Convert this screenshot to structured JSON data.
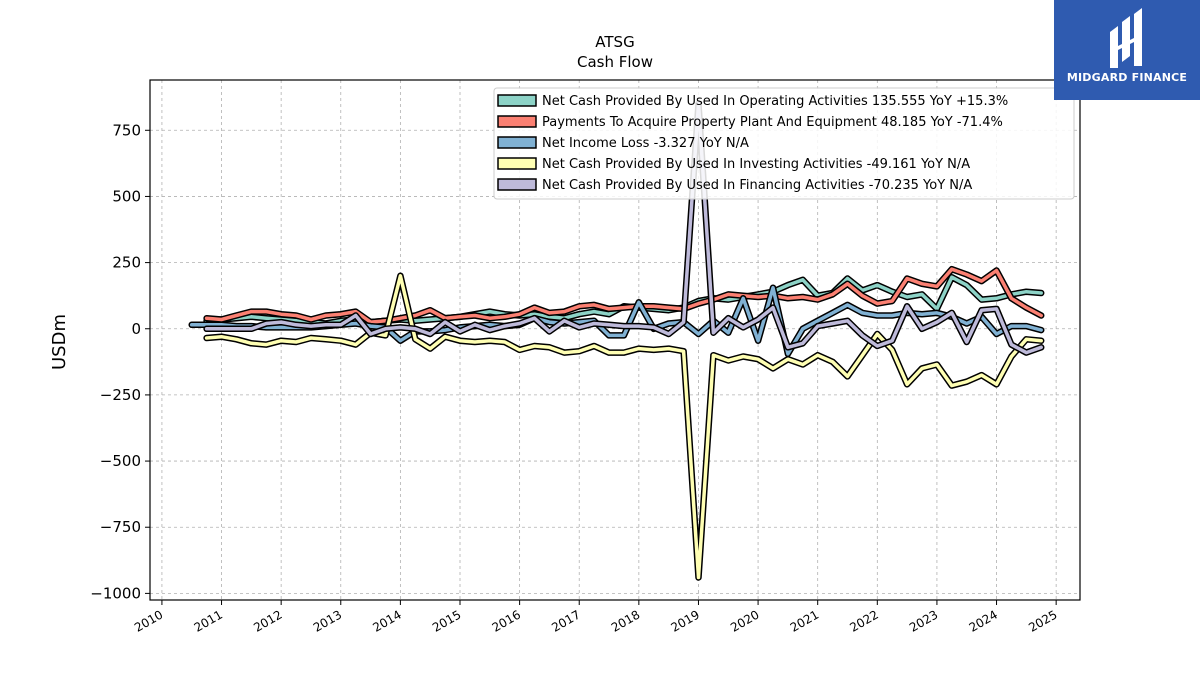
{
  "title_line1": "ATSG",
  "title_line2": "Cash Flow",
  "brand": "MIDGARD FINANCE",
  "chart_data": {
    "type": "line",
    "ylabel": "USDm",
    "ylim": [
      -1025,
      940
    ],
    "xlim": [
      2009.8,
      2025.4
    ],
    "yticks": [
      -1000,
      -750,
      -500,
      -250,
      0,
      250,
      500,
      750
    ],
    "ytick_labels": [
      "−1000",
      "−750",
      "−500",
      "−250",
      "0",
      "250",
      "500",
      "750"
    ],
    "xticks": [
      "2010",
      "2011",
      "2012",
      "2013",
      "2014",
      "2015",
      "2016",
      "2017",
      "2018",
      "2019",
      "2020",
      "2021",
      "2022",
      "2023",
      "2024",
      "2025"
    ],
    "grid": true,
    "legend_placement": "upper-right",
    "series": [
      {
        "name": "Net Cash Provided By Used In Operating Activities  135.555 YoY +15.3%",
        "color": "#8dd3c7",
        "x": [
          2010.75,
          2011.0,
          2011.25,
          2011.5,
          2011.75,
          2012.0,
          2012.25,
          2012.5,
          2012.75,
          2013.0,
          2013.25,
          2013.5,
          2013.75,
          2014.0,
          2014.25,
          2014.5,
          2014.75,
          2015.0,
          2015.25,
          2015.5,
          2015.75,
          2016.0,
          2016.25,
          2016.5,
          2016.75,
          2017.0,
          2017.25,
          2017.5,
          2017.75,
          2018.0,
          2018.25,
          2018.5,
          2018.75,
          2019.0,
          2019.25,
          2019.5,
          2019.75,
          2020.0,
          2020.25,
          2020.5,
          2020.75,
          2021.0,
          2021.25,
          2021.5,
          2021.75,
          2022.0,
          2022.25,
          2022.5,
          2022.75,
          2023.0,
          2023.25,
          2023.5,
          2023.75,
          2024.0,
          2024.25,
          2024.5,
          2024.75
        ],
        "values": [
          30,
          35,
          40,
          45,
          40,
          35,
          30,
          25,
          20,
          30,
          35,
          25,
          30,
          35,
          30,
          35,
          40,
          45,
          55,
          65,
          55,
          50,
          55,
          45,
          40,
          55,
          65,
          55,
          85,
          80,
          75,
          70,
          80,
          105,
          115,
          110,
          120,
          130,
          140,
          165,
          185,
          125,
          135,
          190,
          145,
          165,
          140,
          120,
          130,
          75,
          195,
          165,
          110,
          115,
          130,
          140,
          135
        ]
      },
      {
        "name": "Payments To Acquire Property Plant And Equipment  48.185 YoY -71.4%",
        "color": "#fb8072",
        "x": [
          2010.75,
          2011.0,
          2011.25,
          2011.5,
          2011.75,
          2012.0,
          2012.25,
          2012.5,
          2012.75,
          2013.0,
          2013.25,
          2013.5,
          2013.75,
          2014.0,
          2014.25,
          2014.5,
          2014.75,
          2015.0,
          2015.25,
          2015.5,
          2015.75,
          2016.0,
          2016.25,
          2016.5,
          2016.75,
          2017.0,
          2017.25,
          2017.5,
          2017.75,
          2018.0,
          2018.25,
          2018.5,
          2018.75,
          2019.0,
          2019.25,
          2019.5,
          2019.75,
          2020.0,
          2020.25,
          2020.5,
          2020.75,
          2021.0,
          2021.25,
          2021.5,
          2021.75,
          2022.0,
          2022.25,
          2022.5,
          2022.75,
          2023.0,
          2023.25,
          2023.5,
          2023.75,
          2024.0,
          2024.25,
          2024.5,
          2024.75
        ],
        "values": [
          40,
          35,
          50,
          65,
          65,
          55,
          50,
          35,
          50,
          55,
          65,
          25,
          30,
          40,
          50,
          70,
          40,
          45,
          50,
          40,
          45,
          55,
          80,
          60,
          65,
          85,
          90,
          75,
          80,
          85,
          85,
          80,
          75,
          95,
          110,
          130,
          125,
          120,
          125,
          115,
          120,
          110,
          130,
          170,
          125,
          95,
          105,
          190,
          170,
          160,
          225,
          205,
          180,
          220,
          115,
          80,
          50
        ]
      },
      {
        "name": "Net Income Loss  -3.327 YoY N/A",
        "color": "#80b1d3",
        "x": [
          2010.5,
          2010.75,
          2011.0,
          2011.25,
          2011.5,
          2011.75,
          2012.0,
          2012.25,
          2012.5,
          2012.75,
          2013.0,
          2013.25,
          2013.5,
          2013.75,
          2014.0,
          2014.25,
          2014.5,
          2014.75,
          2015.0,
          2015.25,
          2015.5,
          2015.75,
          2016.0,
          2016.25,
          2016.5,
          2016.75,
          2017.0,
          2017.25,
          2017.5,
          2017.75,
          2018.0,
          2018.25,
          2018.5,
          2018.75,
          2019.0,
          2019.25,
          2019.5,
          2019.75,
          2020.0,
          2020.25,
          2020.5,
          2020.75,
          2021.0,
          2021.25,
          2021.5,
          2021.75,
          2022.0,
          2022.25,
          2022.5,
          2022.75,
          2023.0,
          2023.25,
          2023.5,
          2023.75,
          2024.0,
          2024.25,
          2024.5,
          2024.75
        ],
        "values": [
          15,
          15,
          15,
          10,
          10,
          5,
          5,
          5,
          5,
          10,
          15,
          20,
          10,
          5,
          -45,
          -10,
          -10,
          -5,
          5,
          10,
          15,
          10,
          15,
          40,
          25,
          20,
          25,
          30,
          -25,
          -25,
          100,
          0,
          20,
          25,
          -20,
          30,
          -15,
          115,
          -45,
          155,
          -95,
          0,
          30,
          60,
          90,
          60,
          50,
          50,
          60,
          55,
          60,
          45,
          20,
          45,
          -20,
          10,
          10,
          -5
        ]
      },
      {
        "name": "Net Cash Provided By Used In Investing Activities  -49.161 YoY N/A",
        "color": "#ffffb3",
        "x": [
          2010.75,
          2011.0,
          2011.25,
          2011.5,
          2011.75,
          2012.0,
          2012.25,
          2012.5,
          2012.75,
          2013.0,
          2013.25,
          2013.5,
          2013.75,
          2014.0,
          2014.25,
          2014.5,
          2014.75,
          2015.0,
          2015.25,
          2015.5,
          2015.75,
          2016.0,
          2016.25,
          2016.5,
          2016.75,
          2017.0,
          2017.25,
          2017.5,
          2017.75,
          2018.0,
          2018.25,
          2018.5,
          2018.75,
          2019.0,
          2019.25,
          2019.5,
          2019.75,
          2020.0,
          2020.25,
          2020.5,
          2020.75,
          2021.0,
          2021.25,
          2021.5,
          2021.75,
          2022.0,
          2022.25,
          2022.5,
          2022.75,
          2023.0,
          2023.25,
          2023.5,
          2023.75,
          2024.0,
          2024.25,
          2024.5,
          2024.75
        ],
        "values": [
          -35,
          -30,
          -40,
          -55,
          -60,
          -45,
          -50,
          -35,
          -40,
          -45,
          -60,
          -15,
          -25,
          200,
          -40,
          -75,
          -30,
          -45,
          -50,
          -45,
          -50,
          -80,
          -65,
          -70,
          -90,
          -85,
          -65,
          -90,
          -90,
          -75,
          -80,
          -75,
          -85,
          -940,
          -100,
          -120,
          -105,
          -115,
          -150,
          -115,
          -135,
          -100,
          -125,
          -180,
          -100,
          -20,
          -80,
          -210,
          -150,
          -135,
          -215,
          -200,
          -175,
          -210,
          -105,
          -40,
          -45
        ]
      },
      {
        "name": "Net Cash Provided By Used In Financing Activities  -70.235 YoY N/A",
        "color": "#bebada",
        "x": [
          2010.75,
          2011.0,
          2011.25,
          2011.5,
          2011.75,
          2012.0,
          2012.25,
          2012.5,
          2012.75,
          2013.0,
          2013.25,
          2013.5,
          2013.75,
          2014.0,
          2014.25,
          2014.5,
          2014.75,
          2015.0,
          2015.25,
          2015.5,
          2015.75,
          2016.0,
          2016.25,
          2016.5,
          2016.75,
          2017.0,
          2017.25,
          2017.5,
          2017.75,
          2018.0,
          2018.25,
          2018.5,
          2018.75,
          2019.0,
          2019.25,
          2019.5,
          2019.75,
          2020.0,
          2020.25,
          2020.5,
          2020.75,
          2021.0,
          2021.25,
          2021.5,
          2021.75,
          2022.0,
          2022.25,
          2022.5,
          2022.75,
          2023.0,
          2023.25,
          2023.5,
          2023.75,
          2024.0,
          2024.25,
          2024.5,
          2024.75
        ],
        "values": [
          0,
          0,
          0,
          0,
          20,
          25,
          15,
          10,
          15,
          15,
          50,
          -20,
          0,
          5,
          0,
          -20,
          25,
          -10,
          15,
          -5,
          10,
          20,
          40,
          -10,
          30,
          5,
          20,
          15,
          10,
          10,
          5,
          -20,
          25,
          850,
          -15,
          40,
          5,
          35,
          80,
          -70,
          -55,
          10,
          20,
          30,
          -25,
          -65,
          -45,
          85,
          0,
          25,
          60,
          -50,
          70,
          75,
          -60,
          -90,
          -70
        ]
      }
    ]
  }
}
